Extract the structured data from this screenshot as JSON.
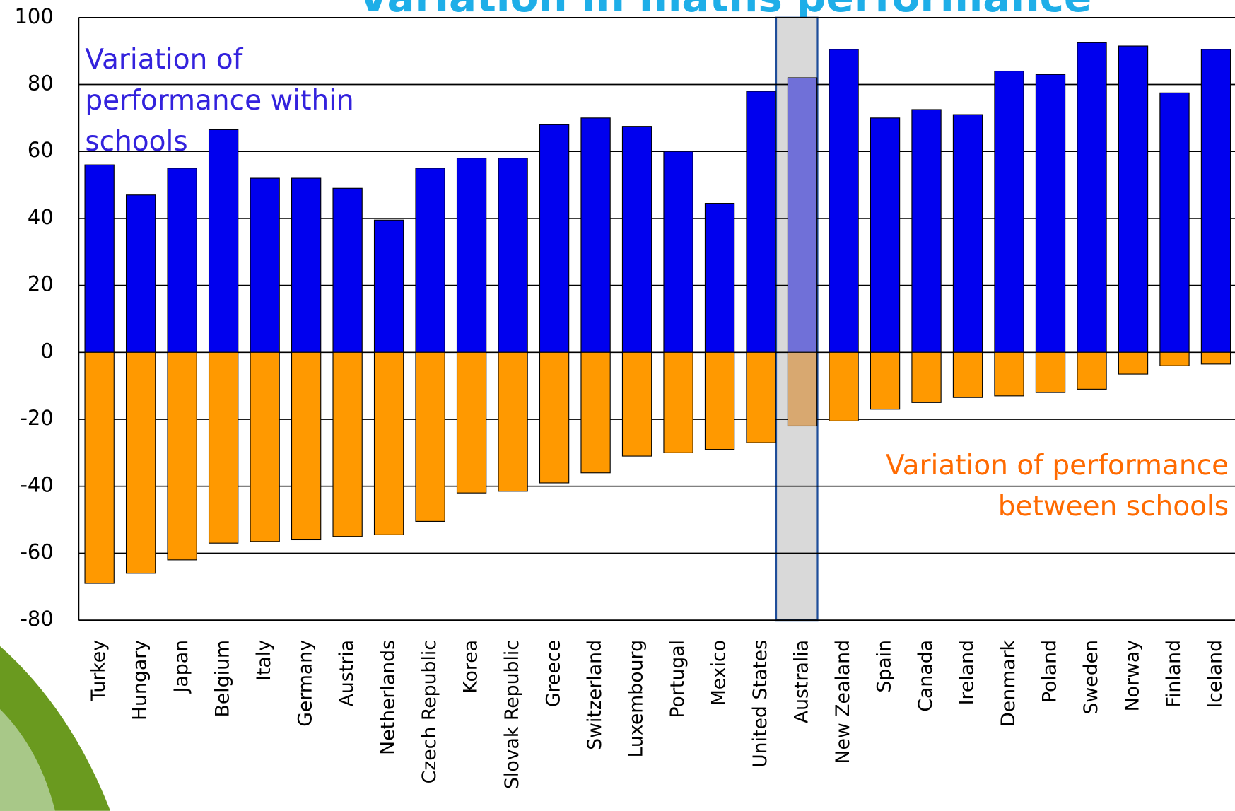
{
  "chart_data": {
    "type": "bar",
    "title": "Variation in maths performance",
    "categories": [
      "Turkey",
      "Hungary",
      "Japan",
      "Belgium",
      "Italy",
      "Germany",
      "Austria",
      "Netherlands",
      "Czech Republic",
      "Korea",
      "Slovak Republic",
      "Greece",
      "Switzerland",
      "Luxembourg",
      "Portugal",
      "Mexico",
      "United States",
      "Australia",
      "New Zealand",
      "Spain",
      "Canada",
      "Ireland",
      "Denmark",
      "Poland",
      "Sweden",
      "Norway",
      "Finland",
      "Iceland"
    ],
    "series": [
      {
        "name": "Variation of\nperformance within\nschools",
        "color": "#0000ee",
        "highlight_color": "#7070d8",
        "values": [
          56,
          47,
          55,
          66.5,
          52,
          52,
          49,
          39.5,
          55,
          58,
          58,
          68,
          70,
          67.5,
          60,
          44.5,
          78,
          82,
          90.5,
          70,
          72.5,
          71,
          84,
          83,
          92.5,
          91.5,
          77.5,
          90.5
        ]
      },
      {
        "name": "Variation of  performance\nbetween schools",
        "color": "#ff9900",
        "highlight_color": "#d8a870",
        "values": [
          -69,
          -66,
          -62,
          -57,
          -56.5,
          -56,
          -55,
          -54.5,
          -50.5,
          -42,
          -41.5,
          -39,
          -36,
          -31,
          -30,
          -29,
          -27,
          -22,
          -20.5,
          -17,
          -15,
          -13.5,
          -13,
          -12,
          -11,
          -6.5,
          -4,
          -3.5
        ]
      }
    ],
    "highlight": "Australia",
    "ylim": [
      -80,
      100
    ],
    "yticks": [
      -80,
      -60,
      -40,
      -20,
      0,
      20,
      40,
      60,
      80,
      100
    ],
    "grid": true
  }
}
